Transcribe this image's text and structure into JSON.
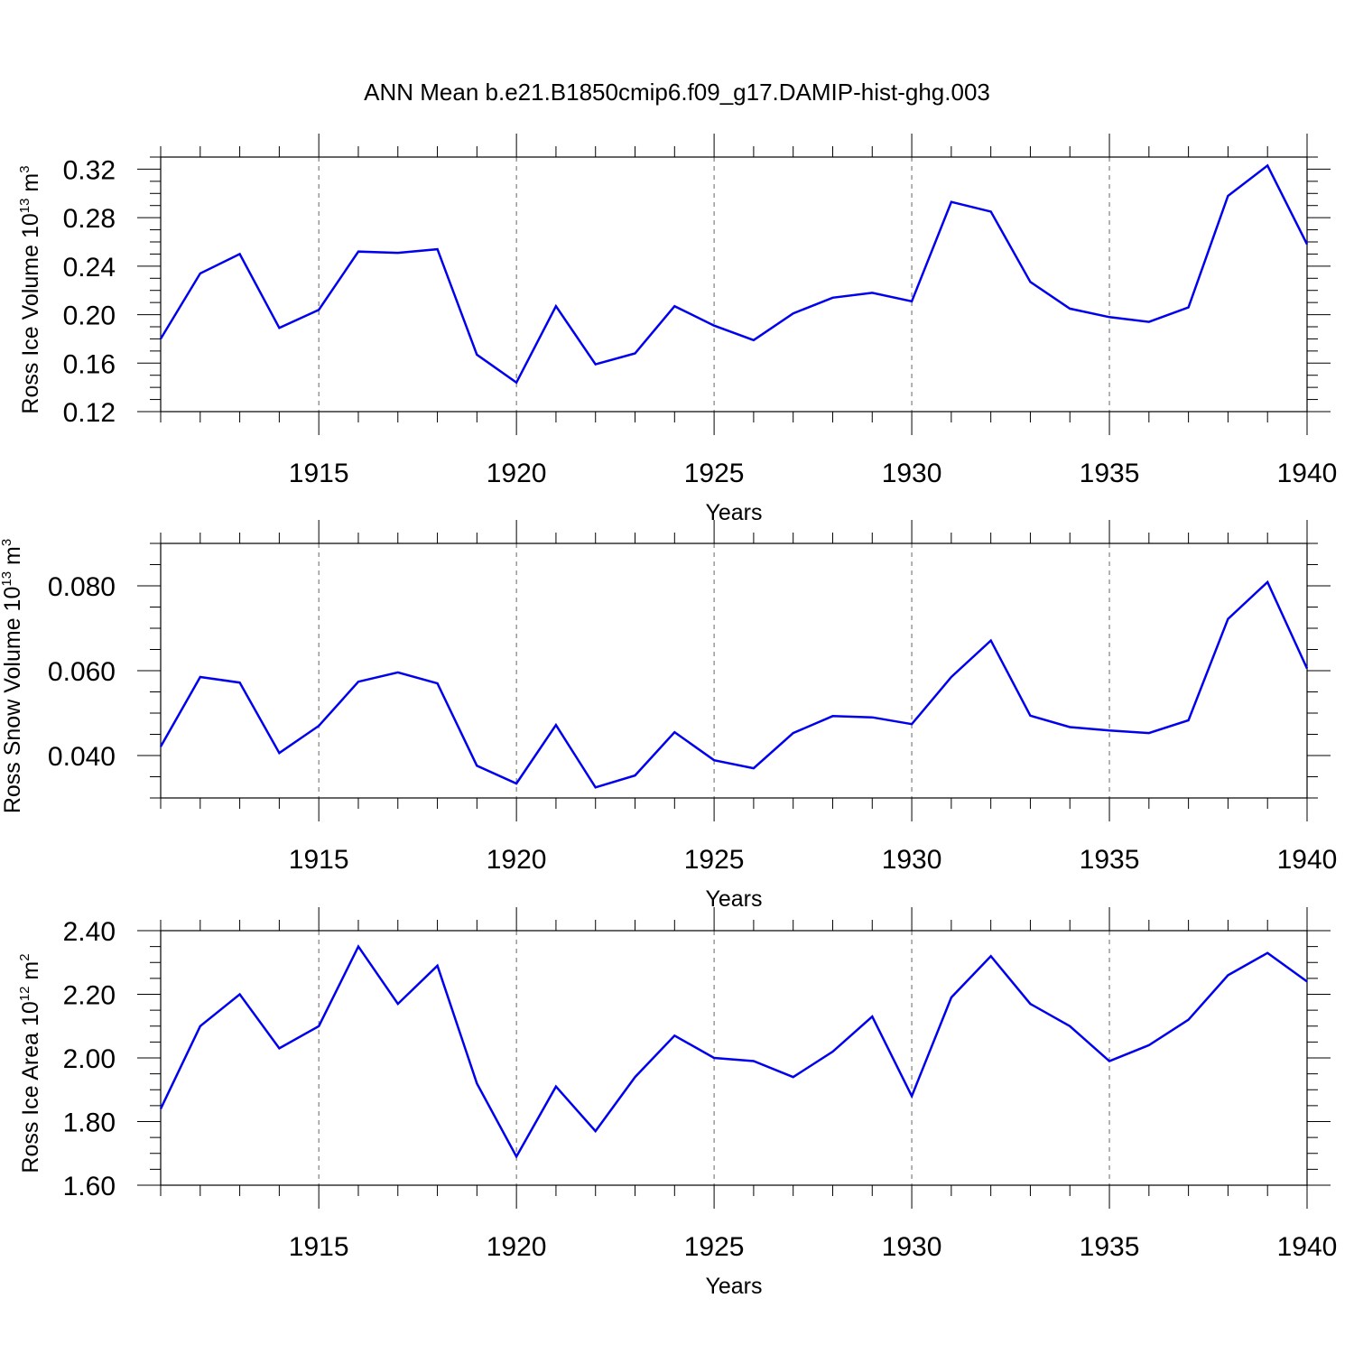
{
  "title": "ANN Mean b.e21.B1850cmip6.f09_g17.DAMIP-hist-ghg.003",
  "colors": {
    "line": "#0000ee",
    "axis": "#000000",
    "grid": "#666666"
  },
  "chart_data": [
    {
      "type": "line",
      "ylabel": {
        "text": "Ross Ice Volume 10",
        "exp": "13",
        "unit_rest": " m",
        "unit_exp": "3"
      },
      "xlabel": "Years",
      "xlim": [
        1911,
        1940
      ],
      "ylim": [
        0.12,
        0.33
      ],
      "yticks": [
        {
          "v": 0.12,
          "label": "0.12"
        },
        {
          "v": 0.16,
          "label": "0.16"
        },
        {
          "v": 0.2,
          "label": "0.20"
        },
        {
          "v": 0.24,
          "label": "0.24"
        },
        {
          "v": 0.28,
          "label": "0.28"
        },
        {
          "v": 0.32,
          "label": "0.32"
        }
      ],
      "yminor": 0.01,
      "xticks": [
        {
          "v": 1915,
          "label": "1915"
        },
        {
          "v": 1920,
          "label": "1920"
        },
        {
          "v": 1925,
          "label": "1925"
        },
        {
          "v": 1930,
          "label": "1930"
        },
        {
          "v": 1935,
          "label": "1935"
        },
        {
          "v": 1940,
          "label": "1940"
        }
      ],
      "grid_x": [
        1915,
        1920,
        1925,
        1930,
        1935
      ],
      "x": [
        1911,
        1912,
        1913,
        1914,
        1915,
        1916,
        1917,
        1918,
        1919,
        1920,
        1921,
        1922,
        1923,
        1924,
        1925,
        1926,
        1927,
        1928,
        1929,
        1930,
        1931,
        1932,
        1933,
        1934,
        1935,
        1936,
        1937,
        1938,
        1939,
        1940
      ],
      "series": [
        {
          "values": [
            0.18,
            0.234,
            0.25,
            0.189,
            0.204,
            0.252,
            0.251,
            0.254,
            0.167,
            0.144,
            0.207,
            0.159,
            0.168,
            0.207,
            0.191,
            0.179,
            0.201,
            0.214,
            0.218,
            0.211,
            0.293,
            0.285,
            0.227,
            0.205,
            0.198,
            0.194,
            0.206,
            0.298,
            0.323,
            0.258
          ]
        }
      ]
    },
    {
      "type": "line",
      "ylabel": {
        "text": "Ross Snow Volume 10",
        "exp": "13",
        "unit_rest": " m",
        "unit_exp": "3"
      },
      "xlabel": "Years",
      "xlim": [
        1911,
        1940
      ],
      "ylim": [
        0.03,
        0.09
      ],
      "yticks": [
        {
          "v": 0.04,
          "label": "0.040"
        },
        {
          "v": 0.06,
          "label": "0.060"
        },
        {
          "v": 0.08,
          "label": "0.080"
        }
      ],
      "yminor": 0.005,
      "xticks": [
        {
          "v": 1915,
          "label": "1915"
        },
        {
          "v": 1920,
          "label": "1920"
        },
        {
          "v": 1925,
          "label": "1925"
        },
        {
          "v": 1930,
          "label": "1930"
        },
        {
          "v": 1935,
          "label": "1935"
        },
        {
          "v": 1940,
          "label": "1940"
        }
      ],
      "grid_x": [
        1915,
        1920,
        1925,
        1930,
        1935
      ],
      "x": [
        1911,
        1912,
        1913,
        1914,
        1915,
        1916,
        1917,
        1918,
        1919,
        1920,
        1921,
        1922,
        1923,
        1924,
        1925,
        1926,
        1927,
        1928,
        1929,
        1930,
        1931,
        1932,
        1933,
        1934,
        1935,
        1936,
        1937,
        1938,
        1939,
        1940
      ],
      "series": [
        {
          "values": [
            0.0421,
            0.0585,
            0.0572,
            0.0406,
            0.047,
            0.0574,
            0.0596,
            0.057,
            0.0376,
            0.0334,
            0.0472,
            0.0325,
            0.0353,
            0.0455,
            0.0389,
            0.037,
            0.0453,
            0.0493,
            0.049,
            0.0474,
            0.0585,
            0.0671,
            0.0494,
            0.0467,
            0.0459,
            0.0453,
            0.0483,
            0.0722,
            0.0809,
            0.0605
          ]
        }
      ]
    },
    {
      "type": "line",
      "ylabel": {
        "text": "Ross Ice Area 10",
        "exp": "12",
        "unit_rest": " m",
        "unit_exp": "2"
      },
      "xlabel": "Years",
      "xlim": [
        1911,
        1940
      ],
      "ylim": [
        1.6,
        2.4
      ],
      "yticks": [
        {
          "v": 1.6,
          "label": "1.60"
        },
        {
          "v": 1.8,
          "label": "1.80"
        },
        {
          "v": 2.0,
          "label": "2.00"
        },
        {
          "v": 2.2,
          "label": "2.20"
        },
        {
          "v": 2.4,
          "label": "2.40"
        }
      ],
      "yminor": 0.05,
      "xticks": [
        {
          "v": 1915,
          "label": "1915"
        },
        {
          "v": 1920,
          "label": "1920"
        },
        {
          "v": 1925,
          "label": "1925"
        },
        {
          "v": 1930,
          "label": "1930"
        },
        {
          "v": 1935,
          "label": "1935"
        },
        {
          "v": 1940,
          "label": "1940"
        }
      ],
      "grid_x": [
        1915,
        1920,
        1925,
        1930,
        1935
      ],
      "x": [
        1911,
        1912,
        1913,
        1914,
        1915,
        1916,
        1917,
        1918,
        1919,
        1920,
        1921,
        1922,
        1923,
        1924,
        1925,
        1926,
        1927,
        1928,
        1929,
        1930,
        1931,
        1932,
        1933,
        1934,
        1935,
        1936,
        1937,
        1938,
        1939,
        1940
      ],
      "series": [
        {
          "values": [
            1.84,
            2.1,
            2.2,
            2.03,
            2.1,
            2.35,
            2.17,
            2.29,
            1.92,
            1.69,
            1.91,
            1.77,
            1.94,
            2.07,
            2.0,
            1.99,
            1.94,
            2.02,
            2.13,
            1.88,
            2.19,
            2.32,
            2.17,
            2.1,
            1.99,
            2.04,
            2.12,
            2.26,
            2.33,
            2.24
          ]
        }
      ]
    }
  ]
}
